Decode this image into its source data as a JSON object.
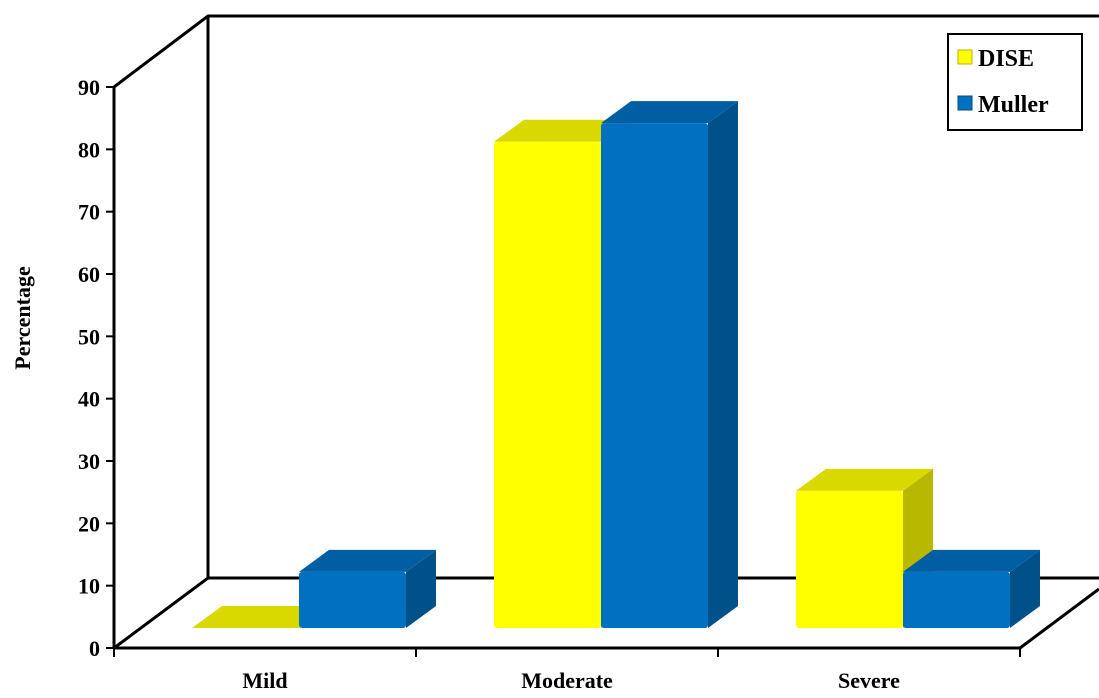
{
  "chart_data": {
    "type": "bar",
    "title": "",
    "xlabel": "",
    "ylabel": "Percentage",
    "ylim": [
      0,
      90
    ],
    "yticks": [
      0,
      10,
      20,
      30,
      40,
      50,
      60,
      70,
      80,
      90
    ],
    "categories": [
      "Mild",
      "Moderate",
      "Severe"
    ],
    "series": [
      {
        "name": "DISE",
        "values": [
          0,
          78,
          22
        ],
        "color": "#FFFF00"
      },
      {
        "name": "Muller",
        "values": [
          9,
          81,
          9
        ],
        "color": "#0070C0"
      }
    ],
    "grid": false,
    "legend_position": "top-right",
    "style": "3d"
  }
}
